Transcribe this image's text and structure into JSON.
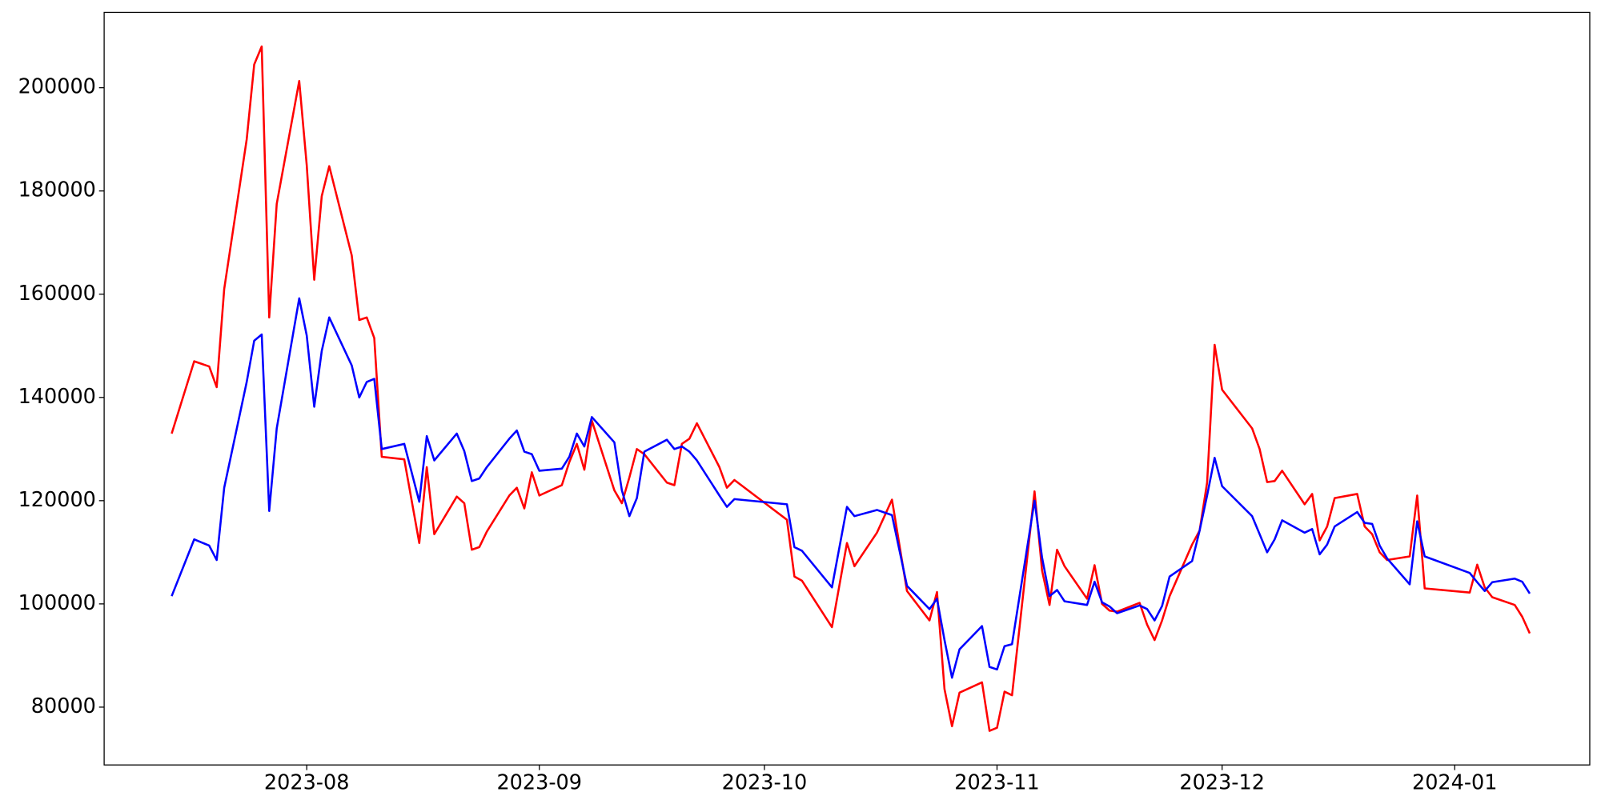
{
  "chart_data": {
    "type": "line",
    "x": [
      "2023-07-14",
      "2023-07-17",
      "2023-07-19",
      "2023-07-20",
      "2023-07-21",
      "2023-07-24",
      "2023-07-25",
      "2023-07-26",
      "2023-07-27",
      "2023-07-28",
      "2023-07-31",
      "2023-08-01",
      "2023-08-02",
      "2023-08-03",
      "2023-08-04",
      "2023-08-07",
      "2023-08-08",
      "2023-08-09",
      "2023-08-10",
      "2023-08-11",
      "2023-08-14",
      "2023-08-16",
      "2023-08-17",
      "2023-08-18",
      "2023-08-21",
      "2023-08-22",
      "2023-08-23",
      "2023-08-24",
      "2023-08-25",
      "2023-08-28",
      "2023-08-29",
      "2023-08-30",
      "2023-08-31",
      "2023-09-01",
      "2023-09-04",
      "2023-09-05",
      "2023-09-06",
      "2023-09-07",
      "2023-09-08",
      "2023-09-11",
      "2023-09-12",
      "2023-09-13",
      "2023-09-14",
      "2023-09-15",
      "2023-09-18",
      "2023-09-19",
      "2023-09-20",
      "2023-09-21",
      "2023-09-22",
      "2023-09-25",
      "2023-09-26",
      "2023-09-27",
      "2023-10-04",
      "2023-10-05",
      "2023-10-06",
      "2023-10-10",
      "2023-10-12",
      "2023-10-13",
      "2023-10-16",
      "2023-10-18",
      "2023-10-20",
      "2023-10-23",
      "2023-10-24",
      "2023-10-25",
      "2023-10-26",
      "2023-10-27",
      "2023-10-30",
      "2023-10-31",
      "2023-11-01",
      "2023-11-02",
      "2023-11-03",
      "2023-11-06",
      "2023-11-07",
      "2023-11-08",
      "2023-11-09",
      "2023-11-10",
      "2023-11-13",
      "2023-11-14",
      "2023-11-15",
      "2023-11-16",
      "2023-11-17",
      "2023-11-20",
      "2023-11-21",
      "2023-11-22",
      "2023-11-23",
      "2023-11-24",
      "2023-11-27",
      "2023-11-28",
      "2023-11-29",
      "2023-11-30",
      "2023-12-01",
      "2023-12-05",
      "2023-12-06",
      "2023-12-07",
      "2023-12-08",
      "2023-12-09",
      "2023-12-12",
      "2023-12-13",
      "2023-12-14",
      "2023-12-15",
      "2023-12-16",
      "2023-12-19",
      "2023-12-20",
      "2023-12-21",
      "2023-12-22",
      "2023-12-23",
      "2023-12-26",
      "2023-12-27",
      "2023-12-28",
      "2024-01-03",
      "2024-01-04",
      "2024-01-05",
      "2024-01-06",
      "2024-01-09",
      "2024-01-10",
      "2024-01-11"
    ],
    "series": [
      {
        "color": "#ff0000",
        "values": [
          133000,
          147000,
          146000,
          142000,
          161000,
          190000,
          204500,
          208000,
          155500,
          177500,
          201300,
          185000,
          162800,
          179000,
          184800,
          167500,
          155000,
          155500,
          151500,
          128500,
          128000,
          111800,
          126500,
          113500,
          120800,
          119500,
          110500,
          111000,
          114000,
          121000,
          122500,
          118500,
          125500,
          121000,
          123000,
          127500,
          131000,
          126000,
          135500,
          122000,
          119500,
          124500,
          130000,
          129000,
          123500,
          123000,
          131000,
          132000,
          135000,
          126500,
          122500,
          124000,
          116300,
          105300,
          104500,
          95500,
          111800,
          107300,
          113800,
          120200,
          102500,
          96800,
          102300,
          83500,
          76300,
          82800,
          84800,
          75400,
          76000,
          83000,
          82300,
          121800,
          106500,
          99800,
          110500,
          107300,
          101000,
          107500,
          100000,
          98700,
          98500,
          100200,
          96000,
          93000,
          96800,
          101500,
          111500,
          114200,
          123500,
          150200,
          141500,
          134000,
          130000,
          123600,
          123800,
          125800,
          119300,
          121300,
          112300,
          115000,
          120500,
          121300,
          115000,
          113500,
          110000,
          108500,
          109200,
          121000,
          103000,
          102200,
          107600,
          103200,
          101300,
          99800,
          97500,
          94300
        ]
      },
      {
        "color": "#0000ff",
        "values": [
          101500,
          112500,
          111300,
          108500,
          122500,
          143000,
          151000,
          152200,
          118000,
          134000,
          159200,
          152000,
          138200,
          149000,
          155500,
          146200,
          140000,
          143000,
          143600,
          130000,
          131000,
          119800,
          132500,
          127800,
          133000,
          129600,
          123800,
          124300,
          126500,
          132000,
          133600,
          129500,
          129000,
          125800,
          126200,
          128500,
          133000,
          130500,
          136200,
          131300,
          122000,
          117000,
          120500,
          129500,
          131800,
          130000,
          130500,
          129500,
          127800,
          121000,
          118800,
          120300,
          119300,
          111000,
          110300,
          103200,
          118800,
          117000,
          118200,
          117200,
          103500,
          99000,
          101000,
          93000,
          85700,
          91200,
          95700,
          87800,
          87300,
          91800,
          92200,
          120000,
          109000,
          101500,
          102700,
          100500,
          99800,
          104300,
          100300,
          99500,
          98200,
          99700,
          99000,
          96800,
          99600,
          105300,
          108300,
          114200,
          121000,
          128300,
          122800,
          117000,
          113500,
          110000,
          112500,
          116200,
          113800,
          114500,
          109600,
          111500,
          115000,
          117800,
          115700,
          115500,
          111300,
          108800,
          103800,
          116000,
          109200,
          106000,
          104200,
          102500,
          104200,
          104900,
          104300,
          102000
        ]
      }
    ],
    "xlim": [
      "2023-07-05",
      "2024-01-19"
    ],
    "xticks": [
      "2023-08",
      "2023-09",
      "2023-10",
      "2023-11",
      "2023-12",
      "2024-01"
    ],
    "ylim": [
      68800,
      214600
    ],
    "yticks": [
      80000,
      100000,
      120000,
      140000,
      160000,
      180000,
      200000
    ]
  }
}
